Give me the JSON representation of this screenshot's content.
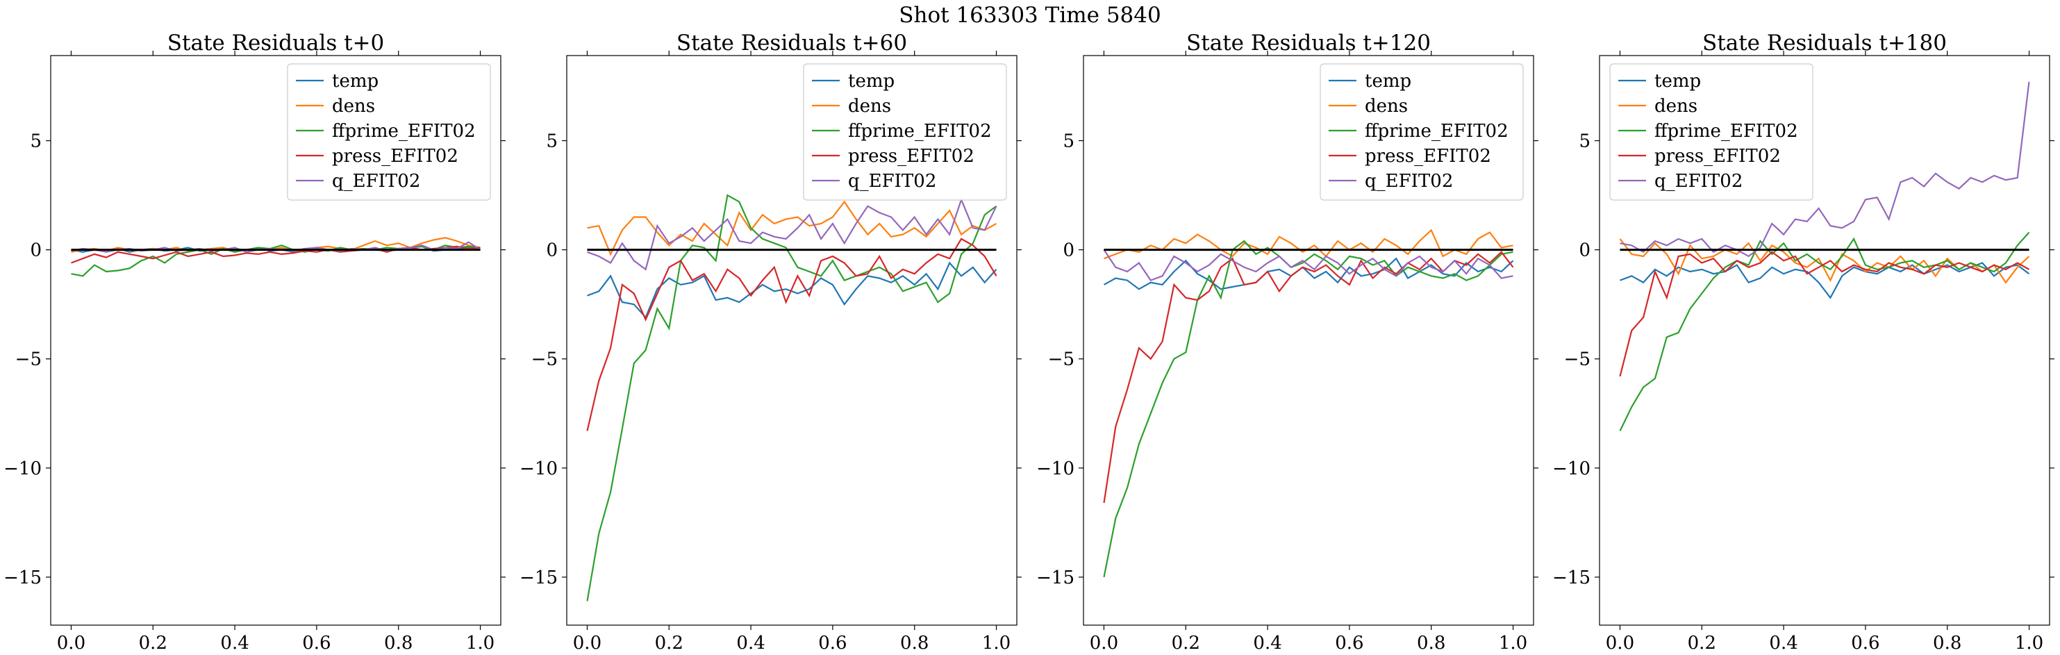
{
  "figure": {
    "suptitle": "Shot 163303   Time 5840"
  },
  "chart_data": [
    {
      "type": "line",
      "title": "State Residuals t+0",
      "xlim": [
        -0.05,
        1.05
      ],
      "ylim": [
        -17.2,
        8.9
      ],
      "xticks": [
        0.0,
        0.2,
        0.4,
        0.6,
        0.8,
        1.0
      ],
      "xticklabels": [
        "0.0",
        "0.2",
        "0.4",
        "0.6",
        "0.8",
        "1.0"
      ],
      "yticks": [
        -15,
        -10,
        -5,
        0,
        5
      ],
      "yticklabels": [
        "−15",
        "−10",
        "−5",
        "0",
        "5"
      ],
      "legend": "top-right",
      "zero_line": true,
      "series": [
        {
          "name": "temp",
          "color": "#1f77b4",
          "values": [
            0.0,
            -0.1,
            0.0,
            -0.05,
            0.05,
            -0.1,
            0.0,
            0.05,
            -0.05,
            0.0,
            0.1,
            -0.05,
            0.0,
            0.05,
            -0.1,
            0.0,
            0.1,
            -0.05,
            0.0,
            -0.1,
            0.05,
            0.0,
            -0.05,
            0.1,
            0.0,
            0.05,
            0.0,
            -0.05,
            0.0,
            0.1,
            0.15,
            -0.05,
            0.0,
            0.05,
            0.1,
            0.0
          ]
        },
        {
          "name": "dens",
          "color": "#ff7f0e",
          "values": [
            -0.1,
            0.0,
            0.05,
            -0.05,
            0.1,
            0.0,
            -0.05,
            0.05,
            0.0,
            0.1,
            -0.05,
            0.0,
            0.05,
            0.1,
            -0.05,
            0.0,
            0.05,
            0.0,
            0.1,
            -0.05,
            0.0,
            0.1,
            0.15,
            0.05,
            0.0,
            0.2,
            0.4,
            0.2,
            0.3,
            0.1,
            0.3,
            0.45,
            0.55,
            0.4,
            0.2,
            0.1
          ]
        },
        {
          "name": "ffprime_EFIT02",
          "color": "#2ca02c",
          "values": [
            -1.1,
            -1.2,
            -0.7,
            -1.0,
            -0.95,
            -0.85,
            -0.5,
            -0.3,
            -0.6,
            -0.2,
            -0.1,
            0.0,
            -0.2,
            0.05,
            -0.1,
            0.0,
            0.1,
            0.05,
            0.2,
            0.0,
            -0.1,
            0.05,
            -0.05,
            0.1,
            0.0,
            0.05,
            0.0,
            0.1,
            0.05,
            0.1,
            0.15,
            0.0,
            0.2,
            0.1,
            0.15,
            0.1
          ]
        },
        {
          "name": "press_EFIT02",
          "color": "#d62728",
          "values": [
            -0.6,
            -0.4,
            -0.2,
            -0.35,
            -0.1,
            -0.2,
            -0.3,
            -0.4,
            -0.25,
            -0.1,
            -0.3,
            -0.2,
            -0.1,
            -0.3,
            -0.25,
            -0.15,
            -0.2,
            -0.1,
            -0.2,
            -0.15,
            -0.05,
            -0.1,
            0.0,
            -0.1,
            -0.05,
            0.0,
            0.05,
            -0.1,
            0.05,
            0.1,
            0.0,
            0.05,
            0.1,
            0.15,
            0.05,
            0.1
          ]
        },
        {
          "name": "q_EFIT02",
          "color": "#9467bd",
          "values": [
            -0.05,
            0.05,
            0.0,
            -0.1,
            0.0,
            0.05,
            -0.05,
            0.0,
            0.1,
            -0.05,
            0.0,
            0.05,
            -0.05,
            0.0,
            0.1,
            -0.1,
            0.0,
            0.05,
            0.0,
            -0.05,
            0.05,
            0.1,
            0.0,
            -0.05,
            0.05,
            0.0,
            0.1,
            -0.05,
            0.05,
            0.1,
            0.2,
            0.0,
            0.1,
            0.05,
            0.35,
            0.0
          ]
        }
      ]
    },
    {
      "type": "line",
      "title": "State Residuals t+60",
      "xlim": [
        -0.05,
        1.05
      ],
      "ylim": [
        -17.2,
        8.9
      ],
      "xticks": [
        0.0,
        0.2,
        0.4,
        0.6,
        0.8,
        1.0
      ],
      "xticklabels": [
        "0.0",
        "0.2",
        "0.4",
        "0.6",
        "0.8",
        "1.0"
      ],
      "yticks": [
        -15,
        -10,
        -5,
        0,
        5
      ],
      "yticklabels": [
        "−15",
        "−10",
        "−5",
        "0",
        "5"
      ],
      "legend": "top-right",
      "zero_line": true,
      "series": [
        {
          "name": "temp",
          "color": "#1f77b4",
          "values": [
            -2.1,
            -1.9,
            -1.2,
            -2.4,
            -2.5,
            -3.1,
            -1.8,
            -1.3,
            -1.6,
            -1.5,
            -1.2,
            -2.3,
            -2.2,
            -2.4,
            -2.0,
            -1.6,
            -1.9,
            -1.8,
            -2.0,
            -1.8,
            -1.3,
            -1.6,
            -2.5,
            -1.8,
            -1.2,
            -1.3,
            -1.5,
            -1.2,
            -1.6,
            -1.1,
            -1.8,
            -0.6,
            -1.2,
            -0.8,
            -1.5,
            -0.9
          ]
        },
        {
          "name": "dens",
          "color": "#ff7f0e",
          "values": [
            1.0,
            1.1,
            -0.2,
            0.9,
            1.5,
            1.5,
            0.8,
            0.2,
            0.7,
            0.4,
            1.2,
            0.7,
            0.2,
            1.7,
            0.9,
            1.6,
            1.2,
            1.4,
            1.5,
            1.1,
            1.2,
            1.5,
            2.2,
            1.4,
            0.7,
            1.2,
            0.6,
            0.7,
            1.0,
            0.6,
            1.2,
            1.8,
            0.7,
            1.1,
            0.9,
            1.2
          ]
        },
        {
          "name": "ffprime_EFIT02",
          "color": "#2ca02c",
          "values": [
            -16.1,
            -13.0,
            -11.1,
            -8.2,
            -5.2,
            -4.6,
            -2.7,
            -3.6,
            -0.5,
            0.2,
            0.1,
            -0.5,
            2.5,
            2.2,
            1.0,
            0.5,
            0.3,
            0.1,
            -0.8,
            -1.0,
            -1.2,
            -0.5,
            -1.4,
            -1.2,
            -1.0,
            -0.8,
            -1.1,
            -1.9,
            -1.7,
            -1.5,
            -2.4,
            -2.0,
            -0.2,
            0.3,
            1.6,
            2.0
          ]
        },
        {
          "name": "press_EFIT02",
          "color": "#d62728",
          "values": [
            -8.3,
            -6.0,
            -4.5,
            -1.6,
            -2.0,
            -3.2,
            -2.0,
            -0.8,
            -0.5,
            -1.4,
            -1.1,
            -1.9,
            -0.9,
            -1.3,
            -2.1,
            -1.4,
            -0.8,
            -2.4,
            -1.2,
            -2.1,
            -0.5,
            -0.3,
            -0.6,
            -1.2,
            -1.1,
            -0.3,
            -1.3,
            -0.9,
            -1.1,
            -0.6,
            -0.2,
            -0.4,
            0.5,
            0.2,
            -0.3,
            -1.2
          ]
        },
        {
          "name": "q_EFIT02",
          "color": "#9467bd",
          "values": [
            -0.1,
            -0.3,
            -0.6,
            0.3,
            -0.5,
            -0.9,
            1.1,
            0.3,
            0.6,
            1.0,
            0.4,
            0.9,
            1.4,
            0.4,
            0.3,
            0.8,
            0.6,
            0.5,
            1.0,
            1.6,
            0.5,
            1.2,
            0.3,
            1.2,
            2.0,
            1.7,
            1.5,
            0.9,
            1.5,
            0.7,
            1.4,
            0.7,
            2.3,
            1.0,
            0.9,
            2.0
          ]
        }
      ]
    },
    {
      "type": "line",
      "title": "State Residuals t+120",
      "xlim": [
        -0.05,
        1.05
      ],
      "ylim": [
        -17.2,
        8.9
      ],
      "xticks": [
        0.0,
        0.2,
        0.4,
        0.6,
        0.8,
        1.0
      ],
      "xticklabels": [
        "0.0",
        "0.2",
        "0.4",
        "0.6",
        "0.8",
        "1.0"
      ],
      "yticks": [
        -15,
        -10,
        -5,
        0,
        5
      ],
      "yticklabels": [
        "−15",
        "−10",
        "−5",
        "0",
        "5"
      ],
      "legend": "top-right",
      "zero_line": true,
      "series": [
        {
          "name": "temp",
          "color": "#1f77b4",
          "values": [
            -1.6,
            -1.3,
            -1.4,
            -1.8,
            -1.5,
            -1.6,
            -1.0,
            -0.5,
            -1.1,
            -1.4,
            -1.8,
            -1.7,
            -1.6,
            -1.5,
            -1.0,
            -0.9,
            -1.2,
            -0.8,
            -1.3,
            -1.0,
            -1.5,
            -0.8,
            -1.2,
            -1.1,
            -0.9,
            -0.4,
            -1.3,
            -1.0,
            -0.7,
            -1.1,
            -1.2,
            -0.6,
            -1.0,
            -0.8,
            -1.0,
            -0.5
          ]
        },
        {
          "name": "dens",
          "color": "#ff7f0e",
          "values": [
            -0.4,
            -0.2,
            0.0,
            -0.1,
            0.2,
            0.0,
            0.5,
            0.3,
            0.7,
            0.4,
            0.0,
            -0.3,
            0.3,
            0.1,
            -0.2,
            0.6,
            0.3,
            -0.1,
            0.2,
            -0.3,
            0.4,
            0.0,
            0.3,
            -0.1,
            0.5,
            0.2,
            -0.2,
            0.4,
            0.9,
            -0.3,
            0.0,
            -0.2,
            0.5,
            0.8,
            0.1,
            0.2
          ]
        },
        {
          "name": "ffprime_EFIT02",
          "color": "#2ca02c",
          "values": [
            -15.0,
            -12.3,
            -10.9,
            -8.9,
            -7.5,
            -6.1,
            -5.0,
            -4.7,
            -2.3,
            -1.2,
            -2.2,
            0.0,
            0.4,
            -0.2,
            0.1,
            -0.3,
            -0.8,
            -0.6,
            -0.2,
            -0.5,
            -0.9,
            -0.3,
            -0.4,
            -0.7,
            -0.5,
            -1.2,
            -0.8,
            -1.0,
            -1.2,
            -1.3,
            -1.1,
            -1.4,
            -1.2,
            -0.7,
            -0.2,
            -0.1
          ]
        },
        {
          "name": "press_EFIT02",
          "color": "#d62728",
          "values": [
            -11.6,
            -8.1,
            -6.4,
            -4.5,
            -5.0,
            -4.2,
            -1.6,
            -2.2,
            -2.3,
            -1.9,
            -0.8,
            -0.4,
            -1.6,
            -1.5,
            -1.0,
            -1.9,
            -1.2,
            -0.8,
            -1.0,
            -0.7,
            -1.2,
            -1.6,
            -0.5,
            -1.3,
            -0.8,
            -1.1,
            -0.6,
            -0.9,
            -0.4,
            -1.0,
            -0.5,
            -0.7,
            -0.2,
            -0.6,
            -0.1,
            -0.8
          ]
        },
        {
          "name": "q_EFIT02",
          "color": "#9467bd",
          "values": [
            0.0,
            -0.8,
            -1.0,
            -0.6,
            -1.4,
            -1.2,
            -0.3,
            -0.6,
            -1.0,
            -0.7,
            -0.2,
            -0.5,
            -0.8,
            -1.0,
            -0.6,
            -0.3,
            -0.8,
            -0.5,
            -0.9,
            -0.3,
            -0.6,
            -1.1,
            -0.7,
            -0.4,
            -0.9,
            -1.2,
            -0.6,
            -0.3,
            -0.8,
            -1.0,
            -0.5,
            -1.1,
            -0.4,
            -0.7,
            -1.3,
            -1.2
          ]
        }
      ]
    },
    {
      "type": "line",
      "title": "State Residuals t+180",
      "xlim": [
        -0.05,
        1.05
      ],
      "ylim": [
        -17.2,
        8.9
      ],
      "xticks": [
        0.0,
        0.2,
        0.4,
        0.6,
        0.8,
        1.0
      ],
      "xticklabels": [
        "0.0",
        "0.2",
        "0.4",
        "0.6",
        "0.8",
        "1.0"
      ],
      "yticks": [
        -15,
        -10,
        -5,
        0,
        5
      ],
      "yticklabels": [
        "−15",
        "−10",
        "−5",
        "0",
        "5"
      ],
      "legend": "top-left",
      "zero_line": true,
      "series": [
        {
          "name": "temp",
          "color": "#1f77b4",
          "values": [
            -1.4,
            -1.2,
            -1.5,
            -0.9,
            -1.2,
            -0.8,
            -1.0,
            -0.9,
            -1.1,
            -1.0,
            -0.7,
            -1.5,
            -1.3,
            -0.8,
            -1.1,
            -0.9,
            -1.0,
            -1.5,
            -2.2,
            -1.2,
            -0.8,
            -1.0,
            -1.1,
            -0.8,
            -1.0,
            -0.7,
            -1.1,
            -0.9,
            -0.7,
            -1.0,
            -0.8,
            -0.6,
            -1.2,
            -0.8,
            -0.7,
            -1.1
          ]
        },
        {
          "name": "dens",
          "color": "#ff7f0e",
          "values": [
            0.5,
            -0.2,
            -0.3,
            0.3,
            -0.2,
            -1.1,
            0.2,
            -0.4,
            -0.3,
            0.0,
            -0.2,
            0.3,
            -0.5,
            0.2,
            -0.1,
            -0.6,
            -0.8,
            -0.4,
            -1.4,
            -0.2,
            -0.5,
            -1.0,
            -0.6,
            -0.8,
            -0.3,
            -0.9,
            -0.5,
            -1.2,
            -0.4,
            -0.9,
            -0.6,
            -1.0,
            -0.7,
            -1.5,
            -0.8,
            -0.3
          ]
        },
        {
          "name": "ffprime_EFIT02",
          "color": "#2ca02c",
          "values": [
            -8.3,
            -7.2,
            -6.3,
            -5.9,
            -4.0,
            -3.8,
            -2.7,
            -2.0,
            -1.3,
            -0.8,
            -0.5,
            -0.7,
            0.4,
            -0.2,
            0.3,
            -0.5,
            -0.2,
            -0.6,
            -0.9,
            -0.3,
            0.5,
            -0.7,
            -0.9,
            -0.8,
            -0.6,
            -0.5,
            -0.8,
            -0.7,
            -0.5,
            -0.9,
            -0.6,
            -0.8,
            -1.0,
            -0.6,
            0.2,
            0.8
          ]
        },
        {
          "name": "press_EFIT02",
          "color": "#d62728",
          "values": [
            -5.8,
            -3.7,
            -3.1,
            -1.0,
            -2.2,
            -0.3,
            -0.2,
            -0.6,
            -0.4,
            -1.0,
            -0.5,
            -0.8,
            -0.6,
            -0.1,
            -0.5,
            -0.3,
            -1.1,
            -0.8,
            -0.5,
            -1.0,
            -0.7,
            -0.9,
            -1.0,
            -0.6,
            -0.8,
            -0.9,
            -1.1,
            -0.7,
            -0.8,
            -0.6,
            -0.8,
            -1.0,
            -0.7,
            -0.9,
            -0.6,
            -0.9
          ]
        },
        {
          "name": "q_EFIT02",
          "color": "#9467bd",
          "values": [
            0.3,
            0.2,
            -0.1,
            0.4,
            0.2,
            0.5,
            0.3,
            0.5,
            -0.1,
            0.2,
            0.0,
            -0.3,
            0.1,
            1.2,
            0.7,
            1.4,
            1.3,
            1.9,
            1.1,
            1.0,
            1.3,
            2.3,
            2.4,
            1.4,
            3.1,
            3.3,
            2.9,
            3.5,
            3.1,
            2.8,
            3.3,
            3.1,
            3.4,
            3.2,
            3.3,
            7.7
          ]
        }
      ]
    }
  ]
}
